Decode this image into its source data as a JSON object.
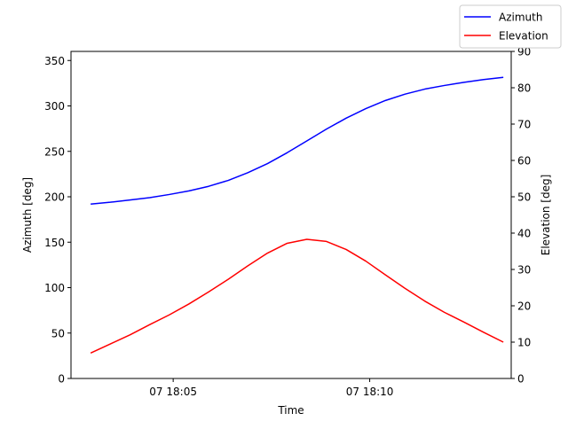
{
  "chart_data": {
    "type": "line",
    "xlabel": "Time",
    "ylabel_left": "Azimuth [deg]",
    "ylabel_right": "Elevation [deg]",
    "x_unit": "minutes after 07 18:00",
    "x_range": [
      2.4,
      13.6
    ],
    "x_ticks": [
      {
        "value": 5,
        "label": "07 18:05"
      },
      {
        "value": 10,
        "label": "07 18:10"
      }
    ],
    "ylim_left": [
      0,
      360
    ],
    "yticks_left": [
      0,
      50,
      100,
      150,
      200,
      250,
      300,
      350
    ],
    "ylim_right": [
      0,
      90
    ],
    "yticks_right": [
      0,
      10,
      20,
      30,
      40,
      50,
      60,
      70,
      80,
      90
    ],
    "grid": false,
    "legend_position": "top-right",
    "series": [
      {
        "name": "Azimuth",
        "axis": "left",
        "color": "#0000ff",
        "x": [
          2.9,
          3.4,
          3.9,
          4.4,
          4.9,
          5.4,
          5.9,
          6.4,
          6.9,
          7.4,
          7.9,
          8.4,
          8.9,
          9.4,
          9.9,
          10.4,
          10.9,
          11.4,
          11.9,
          12.4,
          12.9,
          13.4
        ],
        "values": [
          192,
          194,
          196.5,
          199,
          202.5,
          206.5,
          211.5,
          218,
          226.5,
          236.5,
          248.5,
          261.5,
          274.5,
          286.5,
          297,
          306,
          313,
          318.5,
          322.5,
          326,
          329,
          331.5
        ]
      },
      {
        "name": "Elevation",
        "axis": "right",
        "color": "#ff0000",
        "x": [
          2.9,
          3.4,
          3.9,
          4.4,
          4.9,
          5.4,
          5.9,
          6.4,
          6.9,
          7.4,
          7.9,
          8.4,
          8.9,
          9.4,
          9.9,
          10.4,
          10.9,
          11.4,
          11.9,
          12.4,
          12.9,
          13.4
        ],
        "values": [
          7,
          9.5,
          12,
          14.8,
          17.5,
          20.5,
          23.8,
          27.3,
          31,
          34.5,
          37.2,
          38.3,
          37.7,
          35.5,
          32.3,
          28.5,
          24.8,
          21.3,
          18.2,
          15.5,
          12.7,
          10
        ]
      }
    ]
  }
}
